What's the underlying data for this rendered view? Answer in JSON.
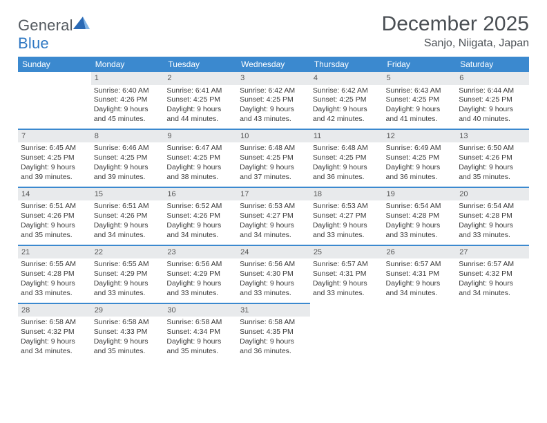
{
  "brand": {
    "text1": "General",
    "text2": "Blue",
    "color1": "#53595f",
    "color2": "#2f78c3",
    "mark_color": "#2969b5"
  },
  "header": {
    "title": "December 2025",
    "location": "Sanjo, Niigata, Japan"
  },
  "theme": {
    "header_bg": "#3b89cf",
    "header_fg": "#ffffff",
    "daynum_bg": "#e8eaec",
    "rule": "#3b89cf",
    "text": "#3a3a3a"
  },
  "weekdays": [
    "Sunday",
    "Monday",
    "Tuesday",
    "Wednesday",
    "Thursday",
    "Friday",
    "Saturday"
  ],
  "weeks": [
    [
      null,
      {
        "n": "1",
        "sr": "Sunrise: 6:40 AM",
        "ss": "Sunset: 4:26 PM",
        "d1": "Daylight: 9 hours",
        "d2": "and 45 minutes."
      },
      {
        "n": "2",
        "sr": "Sunrise: 6:41 AM",
        "ss": "Sunset: 4:25 PM",
        "d1": "Daylight: 9 hours",
        "d2": "and 44 minutes."
      },
      {
        "n": "3",
        "sr": "Sunrise: 6:42 AM",
        "ss": "Sunset: 4:25 PM",
        "d1": "Daylight: 9 hours",
        "d2": "and 43 minutes."
      },
      {
        "n": "4",
        "sr": "Sunrise: 6:42 AM",
        "ss": "Sunset: 4:25 PM",
        "d1": "Daylight: 9 hours",
        "d2": "and 42 minutes."
      },
      {
        "n": "5",
        "sr": "Sunrise: 6:43 AM",
        "ss": "Sunset: 4:25 PM",
        "d1": "Daylight: 9 hours",
        "d2": "and 41 minutes."
      },
      {
        "n": "6",
        "sr": "Sunrise: 6:44 AM",
        "ss": "Sunset: 4:25 PM",
        "d1": "Daylight: 9 hours",
        "d2": "and 40 minutes."
      }
    ],
    [
      {
        "n": "7",
        "sr": "Sunrise: 6:45 AM",
        "ss": "Sunset: 4:25 PM",
        "d1": "Daylight: 9 hours",
        "d2": "and 39 minutes."
      },
      {
        "n": "8",
        "sr": "Sunrise: 6:46 AM",
        "ss": "Sunset: 4:25 PM",
        "d1": "Daylight: 9 hours",
        "d2": "and 39 minutes."
      },
      {
        "n": "9",
        "sr": "Sunrise: 6:47 AM",
        "ss": "Sunset: 4:25 PM",
        "d1": "Daylight: 9 hours",
        "d2": "and 38 minutes."
      },
      {
        "n": "10",
        "sr": "Sunrise: 6:48 AM",
        "ss": "Sunset: 4:25 PM",
        "d1": "Daylight: 9 hours",
        "d2": "and 37 minutes."
      },
      {
        "n": "11",
        "sr": "Sunrise: 6:48 AM",
        "ss": "Sunset: 4:25 PM",
        "d1": "Daylight: 9 hours",
        "d2": "and 36 minutes."
      },
      {
        "n": "12",
        "sr": "Sunrise: 6:49 AM",
        "ss": "Sunset: 4:25 PM",
        "d1": "Daylight: 9 hours",
        "d2": "and 36 minutes."
      },
      {
        "n": "13",
        "sr": "Sunrise: 6:50 AM",
        "ss": "Sunset: 4:26 PM",
        "d1": "Daylight: 9 hours",
        "d2": "and 35 minutes."
      }
    ],
    [
      {
        "n": "14",
        "sr": "Sunrise: 6:51 AM",
        "ss": "Sunset: 4:26 PM",
        "d1": "Daylight: 9 hours",
        "d2": "and 35 minutes."
      },
      {
        "n": "15",
        "sr": "Sunrise: 6:51 AM",
        "ss": "Sunset: 4:26 PM",
        "d1": "Daylight: 9 hours",
        "d2": "and 34 minutes."
      },
      {
        "n": "16",
        "sr": "Sunrise: 6:52 AM",
        "ss": "Sunset: 4:26 PM",
        "d1": "Daylight: 9 hours",
        "d2": "and 34 minutes."
      },
      {
        "n": "17",
        "sr": "Sunrise: 6:53 AM",
        "ss": "Sunset: 4:27 PM",
        "d1": "Daylight: 9 hours",
        "d2": "and 34 minutes."
      },
      {
        "n": "18",
        "sr": "Sunrise: 6:53 AM",
        "ss": "Sunset: 4:27 PM",
        "d1": "Daylight: 9 hours",
        "d2": "and 33 minutes."
      },
      {
        "n": "19",
        "sr": "Sunrise: 6:54 AM",
        "ss": "Sunset: 4:28 PM",
        "d1": "Daylight: 9 hours",
        "d2": "and 33 minutes."
      },
      {
        "n": "20",
        "sr": "Sunrise: 6:54 AM",
        "ss": "Sunset: 4:28 PM",
        "d1": "Daylight: 9 hours",
        "d2": "and 33 minutes."
      }
    ],
    [
      {
        "n": "21",
        "sr": "Sunrise: 6:55 AM",
        "ss": "Sunset: 4:28 PM",
        "d1": "Daylight: 9 hours",
        "d2": "and 33 minutes."
      },
      {
        "n": "22",
        "sr": "Sunrise: 6:55 AM",
        "ss": "Sunset: 4:29 PM",
        "d1": "Daylight: 9 hours",
        "d2": "and 33 minutes."
      },
      {
        "n": "23",
        "sr": "Sunrise: 6:56 AM",
        "ss": "Sunset: 4:29 PM",
        "d1": "Daylight: 9 hours",
        "d2": "and 33 minutes."
      },
      {
        "n": "24",
        "sr": "Sunrise: 6:56 AM",
        "ss": "Sunset: 4:30 PM",
        "d1": "Daylight: 9 hours",
        "d2": "and 33 minutes."
      },
      {
        "n": "25",
        "sr": "Sunrise: 6:57 AM",
        "ss": "Sunset: 4:31 PM",
        "d1": "Daylight: 9 hours",
        "d2": "and 33 minutes."
      },
      {
        "n": "26",
        "sr": "Sunrise: 6:57 AM",
        "ss": "Sunset: 4:31 PM",
        "d1": "Daylight: 9 hours",
        "d2": "and 34 minutes."
      },
      {
        "n": "27",
        "sr": "Sunrise: 6:57 AM",
        "ss": "Sunset: 4:32 PM",
        "d1": "Daylight: 9 hours",
        "d2": "and 34 minutes."
      }
    ],
    [
      {
        "n": "28",
        "sr": "Sunrise: 6:58 AM",
        "ss": "Sunset: 4:32 PM",
        "d1": "Daylight: 9 hours",
        "d2": "and 34 minutes."
      },
      {
        "n": "29",
        "sr": "Sunrise: 6:58 AM",
        "ss": "Sunset: 4:33 PM",
        "d1": "Daylight: 9 hours",
        "d2": "and 35 minutes."
      },
      {
        "n": "30",
        "sr": "Sunrise: 6:58 AM",
        "ss": "Sunset: 4:34 PM",
        "d1": "Daylight: 9 hours",
        "d2": "and 35 minutes."
      },
      {
        "n": "31",
        "sr": "Sunrise: 6:58 AM",
        "ss": "Sunset: 4:35 PM",
        "d1": "Daylight: 9 hours",
        "d2": "and 36 minutes."
      },
      null,
      null,
      null
    ]
  ]
}
